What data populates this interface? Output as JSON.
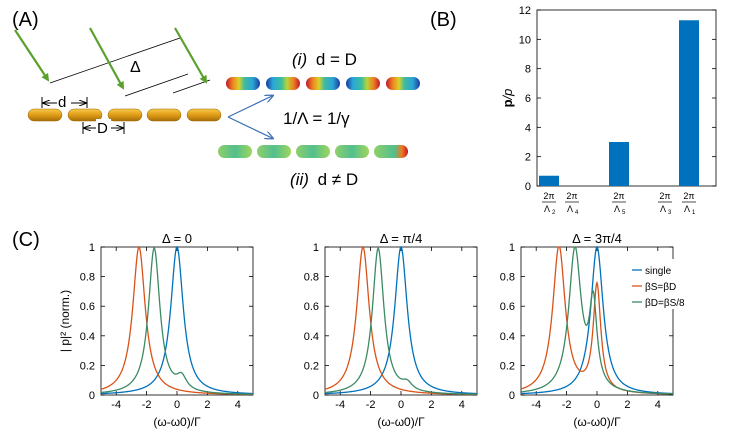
{
  "panels": {
    "a_label": "(A)",
    "b_label": "(B)",
    "c_label": "(C)"
  },
  "panel_a": {
    "delta_label": "Δ",
    "d_label": "d",
    "D_label": "D",
    "case_i_prefix": "(i)",
    "case_i_text": "d = D",
    "case_ii_prefix": "(ii)",
    "case_ii_text": "d ≠ D",
    "relation": "1/Λ = 1/γ",
    "colors": {
      "arrow": "#5aa02c",
      "rod": "#e3a01a",
      "branch": "#3b6db5"
    }
  },
  "chart_data": [
    {
      "type": "bar",
      "panel": "B",
      "categories": [
        "2π/Λ2",
        "2π/Λ4",
        "2π/Λ5",
        "2π/Λ3",
        "2π/Λ1"
      ],
      "category_labels": [
        {
          "num": "2π",
          "den": "Λ",
          "sub": "2"
        },
        {
          "num": "2π",
          "den": "Λ",
          "sub": "4"
        },
        {
          "num": "2π",
          "den": "Λ",
          "sub": "5"
        },
        {
          "num": "2π",
          "den": "Λ",
          "sub": "3"
        },
        {
          "num": "2π",
          "den": "Λ",
          "sub": "1"
        }
      ],
      "values": [
        0.7,
        0,
        3.0,
        0,
        11.3
      ],
      "ylabel_bold": "p",
      "ylabel_rest": "/p",
      "ylim": [
        0,
        12
      ],
      "yticks": [
        0,
        2,
        4,
        6,
        8,
        10,
        12
      ],
      "color": "#0072bd",
      "grid": false
    },
    {
      "type": "line",
      "panel": "C",
      "titles": [
        "Δ = 0",
        "Δ = π/4",
        "Δ = 3π/4"
      ],
      "xlabel": "(ω-ω0)/Γ",
      "ylabel": "| p|² (norm.)",
      "xlim": [
        -5,
        5
      ],
      "ylim": [
        0,
        1
      ],
      "xticks": [
        -4,
        -2,
        0,
        2,
        4
      ],
      "yticks": [
        0,
        0.2,
        0.4,
        0.6,
        0.8,
        1
      ],
      "legend": {
        "placement": "top-right of third plot",
        "entries": [
          "single",
          "βS=βD",
          "βD=βS/8"
        ]
      },
      "series_colors": [
        "#0072bd",
        "#d95319",
        "#3b8a63"
      ],
      "plots": [
        {
          "title": "Δ = 0",
          "series": [
            {
              "name": "single",
              "peaks": [
                {
                  "x0": 0,
                  "amp": 1,
                  "w": 0.5
                }
              ]
            },
            {
              "name": "βS=βD",
              "peaks": [
                {
                  "x0": -2.5,
                  "amp": 1,
                  "w": 0.5
                }
              ]
            },
            {
              "name": "βD=βS/8",
              "peaks": [
                {
                  "x0": -1.5,
                  "amp": 0.99,
                  "w": 0.46
                },
                {
                  "x0": 0.3,
                  "amp": 0.09,
                  "w": 0.4
                }
              ]
            }
          ]
        },
        {
          "title": "Δ = π/4",
          "series": [
            {
              "name": "single",
              "peaks": [
                {
                  "x0": 0,
                  "amp": 1,
                  "w": 0.5
                }
              ]
            },
            {
              "name": "βS=βD",
              "peaks": [
                {
                  "x0": -2.5,
                  "amp": 1,
                  "w": 0.5
                }
              ]
            },
            {
              "name": "βD=βS/8",
              "peaks": [
                {
                  "x0": -1.5,
                  "amp": 0.99,
                  "w": 0.46
                },
                {
                  "x0": 0.4,
                  "amp": 0.05,
                  "w": 0.4
                }
              ]
            }
          ]
        },
        {
          "title": "Δ = 3π/4",
          "series": [
            {
              "name": "single",
              "peaks": [
                {
                  "x0": 0,
                  "amp": 1,
                  "w": 0.5
                }
              ]
            },
            {
              "name": "βS=βD",
              "peaks": [
                {
                  "x0": -2.5,
                  "amp": 1,
                  "w": 0.5
                },
                {
                  "x0": 0,
                  "amp": 0.72,
                  "w": 0.3
                }
              ]
            },
            {
              "name": "βD=βS/8",
              "peaks": [
                {
                  "x0": -1.45,
                  "amp": 0.97,
                  "w": 0.5
                },
                {
                  "x0": -0.25,
                  "amp": 0.56,
                  "w": 0.3
                }
              ]
            }
          ]
        }
      ]
    }
  ]
}
